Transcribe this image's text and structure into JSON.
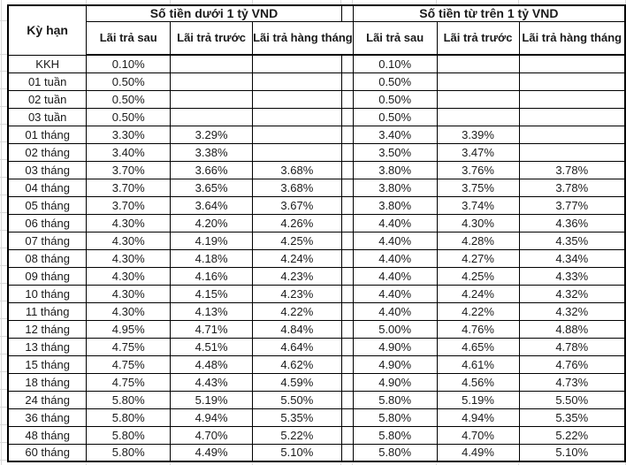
{
  "table": {
    "corner_header": "Kỳ hạn",
    "groups": [
      {
        "label": "Số tiền dưới 1 tỷ VND",
        "columns": [
          "Lãi trả sau",
          "Lãi trả trước",
          "Lãi trả hàng tháng"
        ]
      },
      {
        "label": "Số tiền từ trên 1 tỷ VND",
        "columns": [
          "Lãi trả sau",
          "Lãi trả trước",
          "Lãi trả hàng tháng"
        ]
      }
    ],
    "rows": [
      {
        "term": "KKH",
        "under_1b": [
          "0.10%",
          "",
          ""
        ],
        "over_1b": [
          "0.10%",
          "",
          ""
        ]
      },
      {
        "term": "01 tuần",
        "under_1b": [
          "0.50%",
          "",
          ""
        ],
        "over_1b": [
          "0.50%",
          "",
          ""
        ]
      },
      {
        "term": "02 tuần",
        "under_1b": [
          "0.50%",
          "",
          ""
        ],
        "over_1b": [
          "0.50%",
          "",
          ""
        ]
      },
      {
        "term": "03 tuần",
        "under_1b": [
          "0.50%",
          "",
          ""
        ],
        "over_1b": [
          "0.50%",
          "",
          ""
        ]
      },
      {
        "term": "01 tháng",
        "under_1b": [
          "3.30%",
          "3.29%",
          ""
        ],
        "over_1b": [
          "3.40%",
          "3.39%",
          ""
        ]
      },
      {
        "term": "02 tháng",
        "under_1b": [
          "3.40%",
          "3.38%",
          ""
        ],
        "over_1b": [
          "3.50%",
          "3.47%",
          ""
        ]
      },
      {
        "term": "03 tháng",
        "under_1b": [
          "3.70%",
          "3.66%",
          "3.68%"
        ],
        "over_1b": [
          "3.80%",
          "3.76%",
          "3.78%"
        ]
      },
      {
        "term": "04 tháng",
        "under_1b": [
          "3.70%",
          "3.65%",
          "3.68%"
        ],
        "over_1b": [
          "3.80%",
          "3.75%",
          "3.78%"
        ]
      },
      {
        "term": "05 tháng",
        "under_1b": [
          "3.70%",
          "3.64%",
          "3.67%"
        ],
        "over_1b": [
          "3.80%",
          "3.74%",
          "3.77%"
        ]
      },
      {
        "term": "06 tháng",
        "under_1b": [
          "4.30%",
          "4.20%",
          "4.26%"
        ],
        "over_1b": [
          "4.40%",
          "4.30%",
          "4.36%"
        ]
      },
      {
        "term": "07 tháng",
        "under_1b": [
          "4.30%",
          "4.19%",
          "4.25%"
        ],
        "over_1b": [
          "4.40%",
          "4.28%",
          "4.35%"
        ]
      },
      {
        "term": "08 tháng",
        "under_1b": [
          "4.30%",
          "4.18%",
          "4.24%"
        ],
        "over_1b": [
          "4.40%",
          "4.27%",
          "4.34%"
        ]
      },
      {
        "term": "09 tháng",
        "under_1b": [
          "4.30%",
          "4.16%",
          "4.23%"
        ],
        "over_1b": [
          "4.40%",
          "4.25%",
          "4.33%"
        ]
      },
      {
        "term": "10 tháng",
        "under_1b": [
          "4.30%",
          "4.15%",
          "4.23%"
        ],
        "over_1b": [
          "4.40%",
          "4.24%",
          "4.32%"
        ]
      },
      {
        "term": "11 tháng",
        "under_1b": [
          "4.30%",
          "4.13%",
          "4.22%"
        ],
        "over_1b": [
          "4.40%",
          "4.22%",
          "4.32%"
        ]
      },
      {
        "term": "12 tháng",
        "under_1b": [
          "4.95%",
          "4.71%",
          "4.84%"
        ],
        "over_1b": [
          "5.00%",
          "4.76%",
          "4.88%"
        ]
      },
      {
        "term": "13 tháng",
        "under_1b": [
          "4.75%",
          "4.51%",
          "4.64%"
        ],
        "over_1b": [
          "4.90%",
          "4.65%",
          "4.78%"
        ]
      },
      {
        "term": "15 tháng",
        "under_1b": [
          "4.75%",
          "4.48%",
          "4.62%"
        ],
        "over_1b": [
          "4.90%",
          "4.61%",
          "4.76%"
        ]
      },
      {
        "term": "18 tháng",
        "under_1b": [
          "4.75%",
          "4.43%",
          "4.59%"
        ],
        "over_1b": [
          "4.90%",
          "4.56%",
          "4.73%"
        ]
      },
      {
        "term": "24 tháng",
        "under_1b": [
          "5.80%",
          "5.19%",
          "5.50%"
        ],
        "over_1b": [
          "5.80%",
          "5.19%",
          "5.50%"
        ]
      },
      {
        "term": "36 tháng",
        "under_1b": [
          "5.80%",
          "4.94%",
          "5.35%"
        ],
        "over_1b": [
          "5.80%",
          "4.94%",
          "5.35%"
        ]
      },
      {
        "term": "48 tháng",
        "under_1b": [
          "5.80%",
          "4.70%",
          "5.22%"
        ],
        "over_1b": [
          "5.80%",
          "4.70%",
          "5.22%"
        ]
      },
      {
        "term": "60 tháng",
        "under_1b": [
          "5.80%",
          "4.49%",
          "5.10%"
        ],
        "over_1b": [
          "5.80%",
          "4.49%",
          "5.10%"
        ]
      }
    ]
  },
  "colors": {
    "background": "#ffffff",
    "border": "#000000",
    "text": "#1a1a1a",
    "gridline": "#d9d9d9"
  }
}
